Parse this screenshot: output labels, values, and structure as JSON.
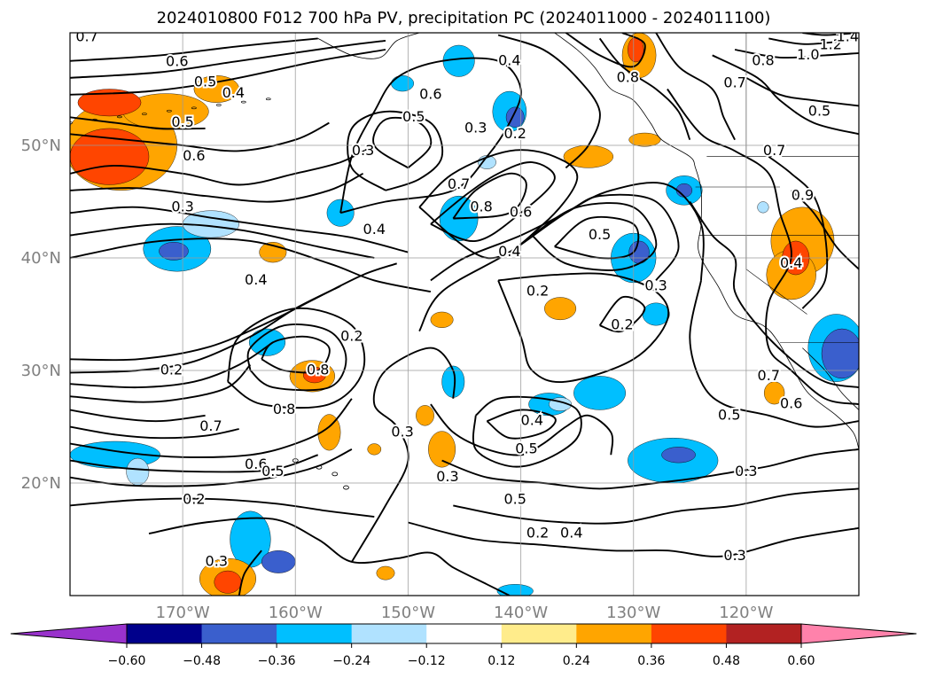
{
  "chart_data": {
    "type": "map_contour",
    "title": "2024010800 F012 700 hPa PV, precipitation PC (2024011000 - 2024011100)",
    "map_extent": {
      "lon_min": -180,
      "lon_max": -110,
      "lat_min": 10,
      "lat_max": 60
    },
    "lon_ticks": [
      -170,
      -160,
      -150,
      -140,
      -130,
      -120
    ],
    "lon_tick_labels": [
      "170°W",
      "160°W",
      "150°W",
      "140°W",
      "130°W",
      "120°W"
    ],
    "lat_ticks": [
      20,
      30,
      40,
      50
    ],
    "lat_tick_labels": [
      "20°N",
      "30°N",
      "40°N",
      "50°N"
    ],
    "grid": true,
    "colorbar": {
      "orientation": "horizontal",
      "extend": "both",
      "boundaries": [
        -0.6,
        -0.48,
        -0.36,
        -0.24,
        -0.12,
        0.12,
        0.24,
        0.36,
        0.48,
        0.6
      ],
      "tick_labels": [
        "−0.60",
        "−0.48",
        "−0.36",
        "−0.24",
        "−0.12",
        "0.12",
        "0.24",
        "0.36",
        "0.48",
        "0.60"
      ],
      "colors": [
        "#9932cc",
        "#00008b",
        "#3a5fcd",
        "#00bfff",
        "#b0e2ff",
        "#ffffff",
        "#ffec8b",
        "#ffa500",
        "#ff4500",
        "#b22222",
        "#ff82ab"
      ]
    },
    "pv_contour_labels": [
      {
        "lon": -178.5,
        "lat": 59.6,
        "text": "0.7"
      },
      {
        "lon": -170.5,
        "lat": 57.4,
        "text": "0.6"
      },
      {
        "lon": -168.0,
        "lat": 55.6,
        "text": "0.5"
      },
      {
        "lon": -165.5,
        "lat": 54.6,
        "text": "0.4"
      },
      {
        "lon": -170.0,
        "lat": 52.0,
        "text": "0.5"
      },
      {
        "lon": -169.0,
        "lat": 49.0,
        "text": "0.6"
      },
      {
        "lon": -170.0,
        "lat": 44.5,
        "text": "0.3"
      },
      {
        "lon": -161.0,
        "lat": 26.5,
        "text": "0.8"
      },
      {
        "lon": -167.5,
        "lat": 25.0,
        "text": "0.7"
      },
      {
        "lon": -163.5,
        "lat": 21.6,
        "text": "0.6"
      },
      {
        "lon": -171.0,
        "lat": 30.0,
        "text": "0.2"
      },
      {
        "lon": -163.5,
        "lat": 38.0,
        "text": "0.4"
      },
      {
        "lon": -155.0,
        "lat": 33.0,
        "text": "0.2"
      },
      {
        "lon": -158.0,
        "lat": 30.0,
        "text": "0.8"
      },
      {
        "lon": -162.0,
        "lat": 21.0,
        "text": "0.5"
      },
      {
        "lon": -169.0,
        "lat": 18.5,
        "text": "0.2"
      },
      {
        "lon": -167.0,
        "lat": 13.0,
        "text": "0.3"
      },
      {
        "lon": -154.0,
        "lat": 49.5,
        "text": "0.3"
      },
      {
        "lon": -149.5,
        "lat": 52.5,
        "text": "0.5"
      },
      {
        "lon": -148.0,
        "lat": 54.5,
        "text": "0.6"
      },
      {
        "lon": -144.0,
        "lat": 51.5,
        "text": "0.3"
      },
      {
        "lon": -140.5,
        "lat": 51.0,
        "text": "0.2"
      },
      {
        "lon": -141.0,
        "lat": 57.5,
        "text": "0.4"
      },
      {
        "lon": -145.5,
        "lat": 46.5,
        "text": "0.7"
      },
      {
        "lon": -143.5,
        "lat": 44.5,
        "text": "0.8"
      },
      {
        "lon": -140.0,
        "lat": 44.0,
        "text": "0.6"
      },
      {
        "lon": -141.0,
        "lat": 40.5,
        "text": "0.4"
      },
      {
        "lon": -133.0,
        "lat": 42.0,
        "text": "0.5"
      },
      {
        "lon": -138.5,
        "lat": 37.0,
        "text": "0.2"
      },
      {
        "lon": -131.0,
        "lat": 34.0,
        "text": "0.2"
      },
      {
        "lon": -128.0,
        "lat": 37.5,
        "text": "0.3"
      },
      {
        "lon": -153.0,
        "lat": 42.5,
        "text": "0.4"
      },
      {
        "lon": -150.5,
        "lat": 24.5,
        "text": "0.3"
      },
      {
        "lon": -146.5,
        "lat": 20.5,
        "text": "0.3"
      },
      {
        "lon": -139.0,
        "lat": 25.5,
        "text": "0.4"
      },
      {
        "lon": -139.5,
        "lat": 23.0,
        "text": "0.5"
      },
      {
        "lon": -140.5,
        "lat": 18.5,
        "text": "0.5"
      },
      {
        "lon": -138.5,
        "lat": 15.5,
        "text": "0.2"
      },
      {
        "lon": -135.5,
        "lat": 15.5,
        "text": "0.4"
      },
      {
        "lon": -121.0,
        "lat": 13.5,
        "text": "0.3"
      },
      {
        "lon": -120.0,
        "lat": 21.0,
        "text": "0.3"
      },
      {
        "lon": -121.5,
        "lat": 26.0,
        "text": "0.5"
      },
      {
        "lon": -116.0,
        "lat": 27.0,
        "text": "0.6"
      },
      {
        "lon": -118.0,
        "lat": 29.5,
        "text": "0.7"
      },
      {
        "lon": -118.5,
        "lat": 57.5,
        "text": "0.8"
      },
      {
        "lon": -114.5,
        "lat": 58.0,
        "text": "1.0"
      },
      {
        "lon": -112.5,
        "lat": 58.9,
        "text": "1.2"
      },
      {
        "lon": -111.0,
        "lat": 59.6,
        "text": "1.4"
      },
      {
        "lon": -121.0,
        "lat": 55.5,
        "text": "0.7"
      },
      {
        "lon": -130.5,
        "lat": 56.0,
        "text": "0.8"
      },
      {
        "lon": -113.5,
        "lat": 53.0,
        "text": "0.5"
      },
      {
        "lon": -117.5,
        "lat": 49.5,
        "text": "0.7"
      },
      {
        "lon": -115.0,
        "lat": 45.5,
        "text": "0.9"
      },
      {
        "lon": -116.0,
        "lat": 39.5,
        "text": "0.4"
      }
    ],
    "precip_pc_patches": [
      {
        "lon": -175.5,
        "lat": 50.0,
        "rx": 5.0,
        "ry": 4.0,
        "value": 0.3
      },
      {
        "lon": -176.5,
        "lat": 49.0,
        "rx": 3.5,
        "ry": 2.5,
        "value": 0.4
      },
      {
        "lon": -171.5,
        "lat": 53.0,
        "rx": 3.8,
        "ry": 1.6,
        "value": 0.3
      },
      {
        "lon": -176.5,
        "lat": 53.8,
        "rx": 2.8,
        "ry": 1.2,
        "value": 0.4
      },
      {
        "lon": -167.0,
        "lat": 55.0,
        "rx": 2.0,
        "ry": 1.2,
        "value": 0.24
      },
      {
        "lon": -170.5,
        "lat": 40.8,
        "rx": 3.0,
        "ry": 2.0,
        "value": -0.3
      },
      {
        "lon": -170.8,
        "lat": 40.6,
        "rx": 1.3,
        "ry": 0.8,
        "value": -0.42
      },
      {
        "lon": -167.5,
        "lat": 43.0,
        "rx": 2.5,
        "ry": 1.2,
        "value": -0.2
      },
      {
        "lon": -162.0,
        "lat": 40.5,
        "rx": 1.2,
        "ry": 0.9,
        "value": 0.3
      },
      {
        "lon": -156.0,
        "lat": 44.0,
        "rx": 1.2,
        "ry": 1.2,
        "value": -0.3
      },
      {
        "lon": -162.5,
        "lat": 32.5,
        "rx": 1.6,
        "ry": 1.2,
        "value": -0.3
      },
      {
        "lon": -158.5,
        "lat": 29.5,
        "rx": 2.0,
        "ry": 1.4,
        "value": 0.3
      },
      {
        "lon": -158.3,
        "lat": 29.6,
        "rx": 1.0,
        "ry": 0.7,
        "value": 0.42
      },
      {
        "lon": -176.0,
        "lat": 22.5,
        "rx": 4.0,
        "ry": 1.2,
        "value": -0.3
      },
      {
        "lon": -174.0,
        "lat": 21.0,
        "rx": 1.0,
        "ry": 1.2,
        "value": -0.2
      },
      {
        "lon": -157.0,
        "lat": 24.5,
        "rx": 1.0,
        "ry": 1.6,
        "value": 0.3
      },
      {
        "lon": -164.0,
        "lat": 15.0,
        "rx": 1.8,
        "ry": 2.5,
        "value": -0.3
      },
      {
        "lon": -161.5,
        "lat": 13.0,
        "rx": 1.5,
        "ry": 1.0,
        "value": -0.4
      },
      {
        "lon": -166.0,
        "lat": 11.5,
        "rx": 2.5,
        "ry": 1.8,
        "value": 0.3
      },
      {
        "lon": -166.0,
        "lat": 11.2,
        "rx": 1.2,
        "ry": 1.0,
        "value": 0.42
      },
      {
        "lon": -152.0,
        "lat": 12.0,
        "rx": 0.8,
        "ry": 0.6,
        "value": 0.25
      },
      {
        "lon": -147.0,
        "lat": 34.5,
        "rx": 1.0,
        "ry": 0.7,
        "value": 0.25
      },
      {
        "lon": -146.0,
        "lat": 29.0,
        "rx": 1.0,
        "ry": 1.4,
        "value": -0.3
      },
      {
        "lon": -148.5,
        "lat": 26.0,
        "rx": 0.8,
        "ry": 0.9,
        "value": 0.3
      },
      {
        "lon": -147.0,
        "lat": 23.0,
        "rx": 1.2,
        "ry": 1.6,
        "value": 0.3
      },
      {
        "lon": -150.5,
        "lat": 55.5,
        "rx": 1.0,
        "ry": 0.7,
        "value": -0.3
      },
      {
        "lon": -145.5,
        "lat": 57.5,
        "rx": 1.4,
        "ry": 1.4,
        "value": -0.3
      },
      {
        "lon": -141.0,
        "lat": 53.0,
        "rx": 1.5,
        "ry": 1.8,
        "value": -0.3
      },
      {
        "lon": -140.5,
        "lat": 52.5,
        "rx": 0.8,
        "ry": 0.9,
        "value": -0.42
      },
      {
        "lon": -145.5,
        "lat": 43.5,
        "rx": 1.7,
        "ry": 2.0,
        "value": -0.3
      },
      {
        "lon": -143.0,
        "lat": 48.5,
        "rx": 0.8,
        "ry": 0.6,
        "value": -0.24
      },
      {
        "lon": -130.0,
        "lat": 40.0,
        "rx": 2.0,
        "ry": 2.2,
        "value": -0.3
      },
      {
        "lon": -129.5,
        "lat": 40.5,
        "rx": 0.9,
        "ry": 1.0,
        "value": -0.42
      },
      {
        "lon": -136.5,
        "lat": 35.5,
        "rx": 1.4,
        "ry": 1.0,
        "value": 0.3
      },
      {
        "lon": -128.0,
        "lat": 35.0,
        "rx": 1.2,
        "ry": 1.0,
        "value": -0.3
      },
      {
        "lon": -133.0,
        "lat": 28.0,
        "rx": 2.3,
        "ry": 1.5,
        "value": -0.3
      },
      {
        "lon": -137.5,
        "lat": 27.0,
        "rx": 1.8,
        "ry": 1.0,
        "value": -0.3
      },
      {
        "lon": -136.5,
        "lat": 27.0,
        "rx": 1.0,
        "ry": 0.6,
        "value": -0.2
      },
      {
        "lon": -126.5,
        "lat": 22.0,
        "rx": 4.0,
        "ry": 2.0,
        "value": -0.3
      },
      {
        "lon": -126.0,
        "lat": 22.5,
        "rx": 1.5,
        "ry": 0.7,
        "value": -0.42
      },
      {
        "lon": -129.5,
        "lat": 58.0,
        "rx": 1.5,
        "ry": 2.0,
        "value": 0.3
      },
      {
        "lon": -129.8,
        "lat": 58.5,
        "rx": 0.7,
        "ry": 1.1,
        "value": 0.4
      },
      {
        "lon": -134.0,
        "lat": 49.0,
        "rx": 2.2,
        "ry": 1.0,
        "value": 0.3
      },
      {
        "lon": -129.0,
        "lat": 50.5,
        "rx": 1.4,
        "ry": 0.6,
        "value": 0.24
      },
      {
        "lon": -125.5,
        "lat": 46.0,
        "rx": 1.6,
        "ry": 1.3,
        "value": -0.3
      },
      {
        "lon": -125.5,
        "lat": 46.0,
        "rx": 0.7,
        "ry": 0.6,
        "value": -0.42
      },
      {
        "lon": -115.0,
        "lat": 41.5,
        "rx": 2.8,
        "ry": 3.0,
        "value": 0.3
      },
      {
        "lon": -116.0,
        "lat": 38.5,
        "rx": 2.2,
        "ry": 2.2,
        "value": 0.3
      },
      {
        "lon": -115.6,
        "lat": 40.0,
        "rx": 1.2,
        "ry": 1.5,
        "value": 0.42
      },
      {
        "lon": -112.0,
        "lat": 32.0,
        "rx": 2.5,
        "ry": 3.0,
        "value": -0.3
      },
      {
        "lon": -111.5,
        "lat": 31.5,
        "rx": 1.8,
        "ry": 2.2,
        "value": -0.42
      },
      {
        "lon": -117.5,
        "lat": 28.0,
        "rx": 0.9,
        "ry": 1.0,
        "value": 0.3
      },
      {
        "lon": -118.5,
        "lat": 44.5,
        "rx": 0.5,
        "ry": 0.5,
        "value": -0.24
      },
      {
        "lon": -140.5,
        "lat": 10.4,
        "rx": 1.6,
        "ry": 0.6,
        "value": -0.3
      },
      {
        "lon": -153.0,
        "lat": 23.0,
        "rx": 0.6,
        "ry": 0.5,
        "value": 0.3
      }
    ]
  }
}
